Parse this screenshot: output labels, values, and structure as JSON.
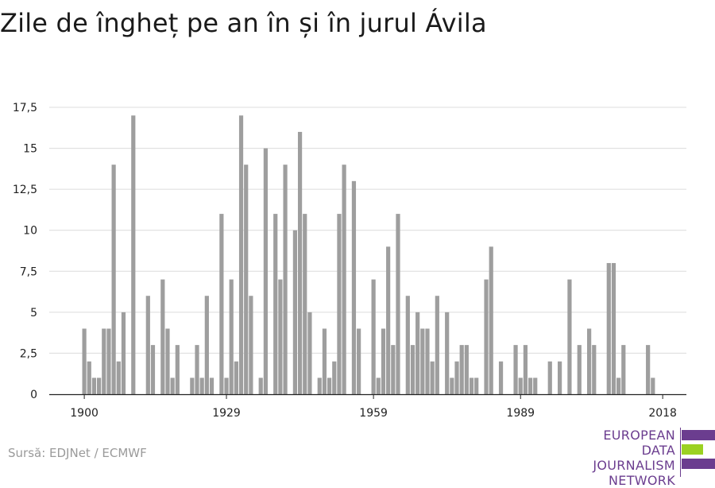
{
  "title": "Zile de îngheț pe an în și în jurul Ávila",
  "source": "Sursă: EDJNet / ECMWF",
  "logo": {
    "lines": [
      "EUROPEAN",
      "DATA JOURNALISM",
      "NETWORK"
    ],
    "colors": {
      "text": "#6b3d8f",
      "bar_purple": "#6b3d8f",
      "bar_green": "#9bd122"
    }
  },
  "chart_data": {
    "type": "bar",
    "title": "",
    "xlabel": "",
    "ylabel": "",
    "ylim": [
      0,
      17.5
    ],
    "yticks": [
      0,
      2.5,
      5,
      7.5,
      10,
      12.5,
      15,
      17.5
    ],
    "ytick_labels": [
      "0",
      "2,5",
      "5",
      "7,5",
      "10",
      "12,5",
      "15",
      "17,5"
    ],
    "xticks": [
      1900,
      1929,
      1959,
      1989,
      2018
    ],
    "xtick_labels": [
      "1900",
      "1929",
      "1959",
      "1989",
      "2018"
    ],
    "grid": true,
    "bar_color": "#9e9e9e",
    "x": [
      1900,
      1901,
      1902,
      1903,
      1904,
      1905,
      1906,
      1907,
      1908,
      1909,
      1910,
      1911,
      1912,
      1913,
      1914,
      1915,
      1916,
      1917,
      1918,
      1919,
      1920,
      1921,
      1922,
      1923,
      1924,
      1925,
      1926,
      1927,
      1928,
      1929,
      1930,
      1931,
      1932,
      1933,
      1934,
      1935,
      1936,
      1937,
      1938,
      1939,
      1940,
      1941,
      1942,
      1943,
      1944,
      1945,
      1946,
      1947,
      1948,
      1949,
      1950,
      1951,
      1952,
      1953,
      1954,
      1955,
      1956,
      1957,
      1958,
      1959,
      1960,
      1961,
      1962,
      1963,
      1964,
      1965,
      1966,
      1967,
      1968,
      1969,
      1970,
      1971,
      1972,
      1973,
      1974,
      1975,
      1976,
      1977,
      1978,
      1979,
      1980,
      1981,
      1982,
      1983,
      1984,
      1985,
      1986,
      1987,
      1988,
      1989,
      1990,
      1991,
      1992,
      1993,
      1994,
      1995,
      1996,
      1997,
      1998,
      1999,
      2000,
      2001,
      2002,
      2003,
      2004,
      2005,
      2006,
      2007,
      2008,
      2009,
      2010,
      2011,
      2012,
      2013,
      2014,
      2015,
      2016,
      2017,
      2018,
      2019
    ],
    "values": [
      4,
      2,
      1,
      1,
      4,
      4,
      14,
      2,
      5,
      0,
      17,
      0,
      0,
      6,
      3,
      0,
      7,
      4,
      1,
      3,
      0,
      0,
      1,
      3,
      1,
      6,
      1,
      0,
      11,
      1,
      7,
      2,
      17,
      14,
      6,
      0,
      1,
      15,
      0,
      11,
      7,
      14,
      0,
      10,
      16,
      11,
      5,
      0,
      1,
      4,
      1,
      2,
      11,
      14,
      0,
      13,
      4,
      0,
      0,
      7,
      1,
      4,
      9,
      3,
      11,
      0,
      6,
      3,
      5,
      4,
      4,
      2,
      6,
      0,
      5,
      1,
      2,
      3,
      3,
      1,
      1,
      0,
      7,
      9,
      0,
      2,
      0,
      0,
      3,
      1,
      3,
      1,
      1,
      0,
      0,
      2,
      0,
      2,
      0,
      7,
      0,
      3,
      0,
      4,
      3,
      0,
      0,
      8,
      8,
      1,
      3,
      0,
      0,
      0,
      0,
      3,
      1,
      0,
      0,
      0
    ]
  }
}
